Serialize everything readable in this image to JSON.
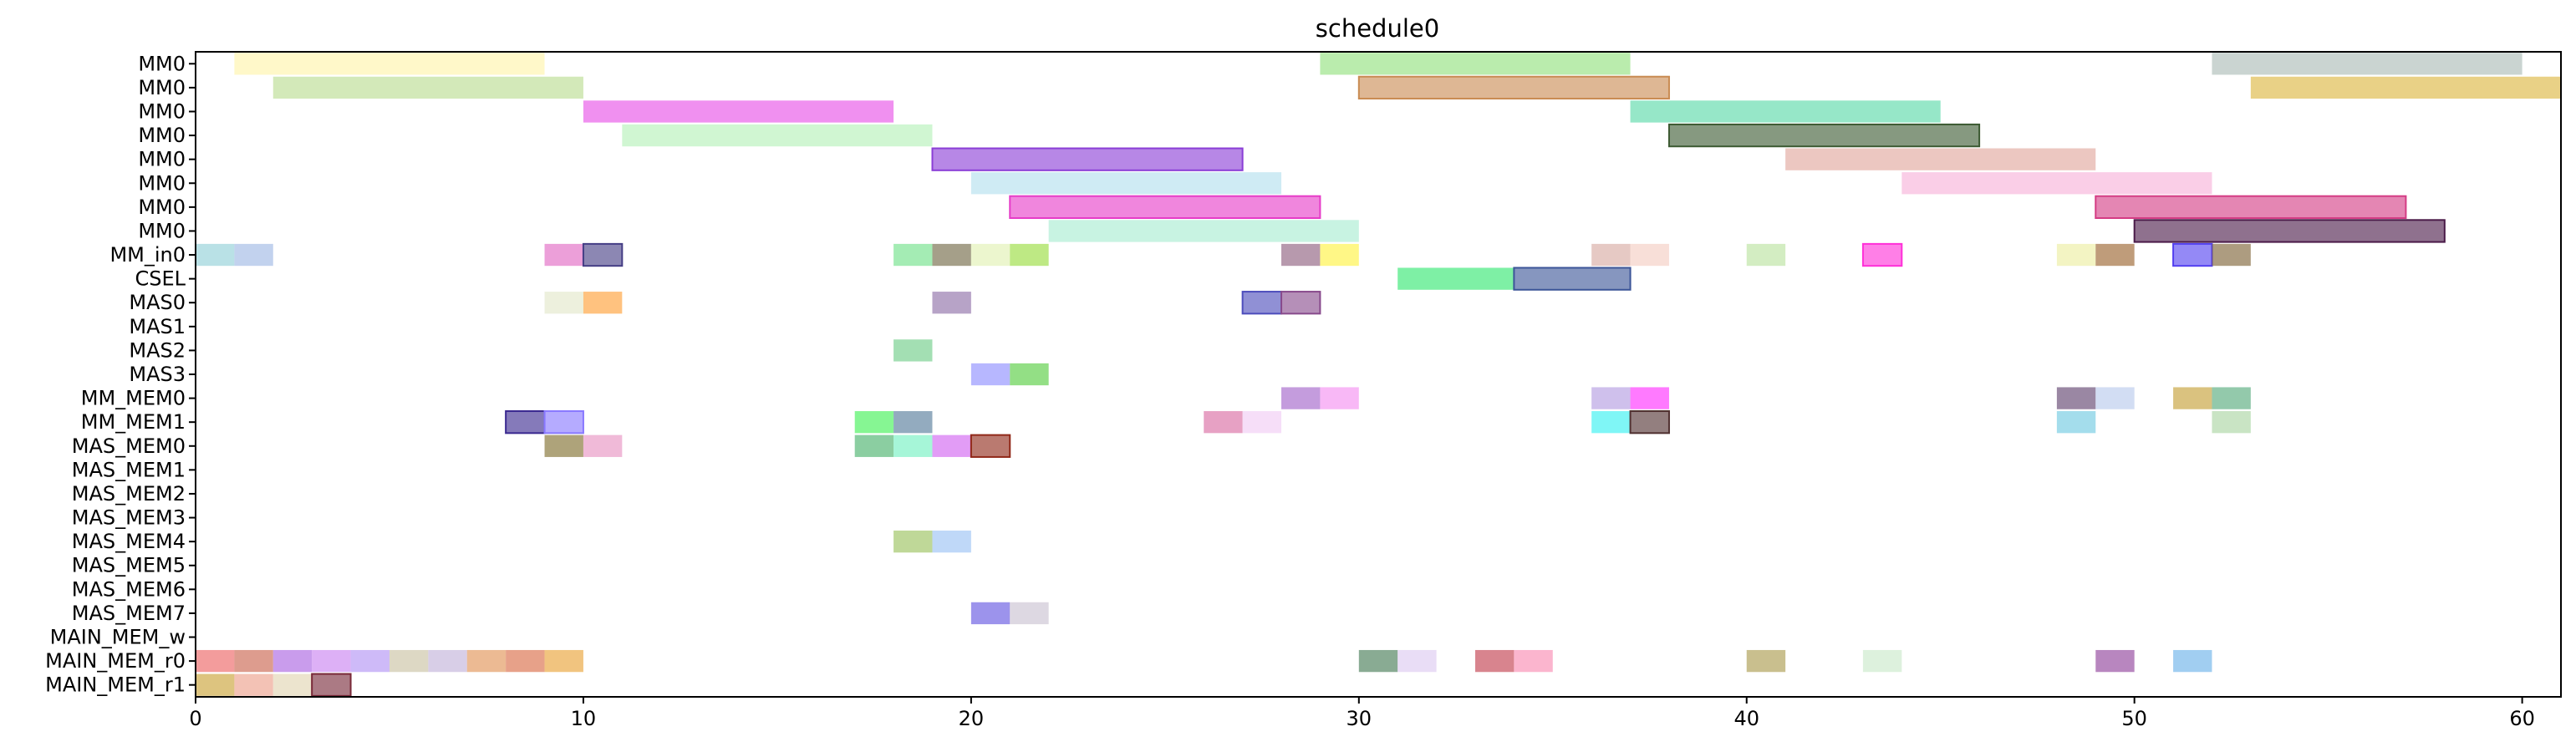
{
  "chart_data": {
    "type": "gantt",
    "title": "schedule0",
    "xlabel": "",
    "ylabel": "",
    "xlim": [
      0,
      61
    ],
    "xticks": [
      0,
      10,
      20,
      30,
      40,
      50,
      60
    ],
    "grid": false,
    "rows": [
      "MM0",
      "MM0",
      "MM0",
      "MM0",
      "MM0",
      "MM0",
      "MM0",
      "MM0",
      "MM_in0",
      "CSEL",
      "MAS0",
      "MAS1",
      "MAS2",
      "MAS3",
      "MM_MEM0",
      "MM_MEM1",
      "MAS_MEM0",
      "MAS_MEM1",
      "MAS_MEM2",
      "MAS_MEM3",
      "MAS_MEM4",
      "MAS_MEM5",
      "MAS_MEM6",
      "MAS_MEM7",
      "MAIN_MEM_w",
      "MAIN_MEM_r0",
      "MAIN_MEM_r1"
    ],
    "bars": [
      {
        "row": 0,
        "start": 1,
        "end": 9,
        "color": "#fff3a8",
        "edge": false
      },
      {
        "row": 0,
        "start": 29,
        "end": 37,
        "color": "#8fe07a",
        "edge": false
      },
      {
        "row": 0,
        "start": 52,
        "end": 60,
        "color": "#a9b9b5",
        "edge": false
      },
      {
        "row": 1,
        "start": 2,
        "end": 10,
        "color": "#b8dc8e",
        "edge": false
      },
      {
        "row": 1,
        "start": 30,
        "end": 38,
        "color": "#c98b52",
        "edge": true
      },
      {
        "row": 1,
        "start": 53,
        "end": 61,
        "color": "#dcb43c",
        "edge": false
      },
      {
        "row": 2,
        "start": 10,
        "end": 18,
        "color": "#e64ce6",
        "edge": false
      },
      {
        "row": 2,
        "start": 37,
        "end": 45,
        "color": "#55d8a6",
        "edge": false
      },
      {
        "row": 3,
        "start": 11,
        "end": 19,
        "color": "#b3f0b6",
        "edge": false
      },
      {
        "row": 3,
        "start": 38,
        "end": 46,
        "color": "#3c5a32",
        "edge": true
      },
      {
        "row": 4,
        "start": 19,
        "end": 27,
        "color": "#8a3ed6",
        "edge": true
      },
      {
        "row": 4,
        "start": 41,
        "end": 49,
        "color": "#e1a59b",
        "edge": false
      },
      {
        "row": 5,
        "start": 20,
        "end": 28,
        "color": "#b1deee",
        "edge": false
      },
      {
        "row": 5,
        "start": 44,
        "end": 52,
        "color": "#f7b0d8",
        "edge": false
      },
      {
        "row": 6,
        "start": 21,
        "end": 29,
        "color": "#e63cc8",
        "edge": true
      },
      {
        "row": 6,
        "start": 49,
        "end": 57,
        "color": "#d43c84",
        "edge": true
      },
      {
        "row": 7,
        "start": 22,
        "end": 30,
        "color": "#a6ecd0",
        "edge": false
      },
      {
        "row": 7,
        "start": 50,
        "end": 58,
        "color": "#4a1a48",
        "edge": true
      },
      {
        "row": 8,
        "start": 0,
        "end": 1,
        "color": "#8ecfd6",
        "edge": false
      },
      {
        "row": 8,
        "start": 1,
        "end": 2,
        "color": "#9cb7e3",
        "edge": false
      },
      {
        "row": 8,
        "start": 9,
        "end": 10,
        "color": "#e064c2",
        "edge": false
      },
      {
        "row": 8,
        "start": 10,
        "end": 11,
        "color": "#453e85",
        "edge": true
      },
      {
        "row": 8,
        "start": 18,
        "end": 19,
        "color": "#6ce086",
        "edge": false
      },
      {
        "row": 8,
        "start": 19,
        "end": 20,
        "color": "#6e6440",
        "edge": false
      },
      {
        "row": 8,
        "start": 20,
        "end": 21,
        "color": "#e0f0b0",
        "edge": false
      },
      {
        "row": 8,
        "start": 21,
        "end": 22,
        "color": "#96dc38",
        "edge": false
      },
      {
        "row": 8,
        "start": 28,
        "end": 29,
        "color": "#8a5a7a",
        "edge": false
      },
      {
        "row": 8,
        "start": 29,
        "end": 30,
        "color": "#fff23c",
        "edge": false
      },
      {
        "row": 8,
        "start": 36,
        "end": 37,
        "color": "#d6a8a0",
        "edge": false
      },
      {
        "row": 8,
        "start": 37,
        "end": 38,
        "color": "#f4ccc0",
        "edge": false
      },
      {
        "row": 8,
        "start": 40,
        "end": 41,
        "color": "#b8e29c",
        "edge": false
      },
      {
        "row": 8,
        "start": 43,
        "end": 44,
        "color": "#ff30d8",
        "edge": true
      },
      {
        "row": 8,
        "start": 48,
        "end": 49,
        "color": "#ecee9e",
        "edge": false
      },
      {
        "row": 8,
        "start": 49,
        "end": 50,
        "color": "#986028",
        "edge": false
      },
      {
        "row": 8,
        "start": 51,
        "end": 52,
        "color": "#5340f0",
        "edge": true
      },
      {
        "row": 8,
        "start": 52,
        "end": 53,
        "color": "#7a6032",
        "edge": false
      },
      {
        "row": 9,
        "start": 31,
        "end": 34,
        "color": "#2ee66e",
        "edge": false
      },
      {
        "row": 9,
        "start": 34,
        "end": 37,
        "color": "#3c5598",
        "edge": true
      },
      {
        "row": 10,
        "start": 9,
        "end": 10,
        "color": "#e2e6c8",
        "edge": false
      },
      {
        "row": 10,
        "start": 10,
        "end": 11,
        "color": "#ff9c30",
        "edge": false
      },
      {
        "row": 10,
        "start": 19,
        "end": 20,
        "color": "#8a6aa4",
        "edge": false
      },
      {
        "row": 10,
        "start": 27,
        "end": 28,
        "color": "#4c4cbc",
        "edge": true
      },
      {
        "row": 10,
        "start": 28,
        "end": 29,
        "color": "#884a8c",
        "edge": true
      },
      {
        "row": 12,
        "start": 18,
        "end": 19,
        "color": "#6acc84",
        "edge": false
      },
      {
        "row": 13,
        "start": 20,
        "end": 21,
        "color": "#8a8aff",
        "edge": false
      },
      {
        "row": 13,
        "start": 21,
        "end": 22,
        "color": "#50cc3a",
        "edge": false
      },
      {
        "row": 14,
        "start": 28,
        "end": 29,
        "color": "#a060c8",
        "edge": false
      },
      {
        "row": 14,
        "start": 29,
        "end": 30,
        "color": "#f48cf0",
        "edge": false
      },
      {
        "row": 14,
        "start": 36,
        "end": 37,
        "color": "#b29ae0",
        "edge": false
      },
      {
        "row": 14,
        "start": 37,
        "end": 38,
        "color": "#ff28ff",
        "edge": false
      },
      {
        "row": 14,
        "start": 48,
        "end": 49,
        "color": "#5c3e6a",
        "edge": false
      },
      {
        "row": 14,
        "start": 49,
        "end": 50,
        "color": "#b6c8ec",
        "edge": false
      },
      {
        "row": 14,
        "start": 51,
        "end": 52,
        "color": "#c49c30",
        "edge": false
      },
      {
        "row": 14,
        "start": 52,
        "end": 53,
        "color": "#50a878",
        "edge": false
      },
      {
        "row": 15,
        "start": 8,
        "end": 9,
        "color": "#3a2890",
        "edge": true
      },
      {
        "row": 15,
        "start": 9,
        "end": 10,
        "color": "#8878ff",
        "edge": true
      },
      {
        "row": 15,
        "start": 17,
        "end": 18,
        "color": "#3cf050",
        "edge": false
      },
      {
        "row": 15,
        "start": 18,
        "end": 19,
        "color": "#507898",
        "edge": false
      },
      {
        "row": 15,
        "start": 26,
        "end": 27,
        "color": "#d868a0",
        "edge": false
      },
      {
        "row": 15,
        "start": 27,
        "end": 28,
        "color": "#f0caf4",
        "edge": false
      },
      {
        "row": 15,
        "start": 36,
        "end": 37,
        "color": "#30f0f0",
        "edge": false
      },
      {
        "row": 15,
        "start": 37,
        "end": 38,
        "color": "#503030",
        "edge": true
      },
      {
        "row": 15,
        "start": 48,
        "end": 49,
        "color": "#6cc8e0",
        "edge": false
      },
      {
        "row": 15,
        "start": 52,
        "end": 53,
        "color": "#a8d4a0",
        "edge": false
      },
      {
        "row": 16,
        "start": 9,
        "end": 10,
        "color": "#7c6a28",
        "edge": false
      },
      {
        "row": 16,
        "start": 10,
        "end": 11,
        "color": "#e690c0",
        "edge": false
      },
      {
        "row": 16,
        "start": 17,
        "end": 18,
        "color": "#44b068",
        "edge": false
      },
      {
        "row": 16,
        "start": 18,
        "end": 19,
        "color": "#70f0c0",
        "edge": false
      },
      {
        "row": 16,
        "start": 19,
        "end": 20,
        "color": "#d060f0",
        "edge": false
      },
      {
        "row": 16,
        "start": 20,
        "end": 21,
        "color": "#902818",
        "edge": true
      },
      {
        "row": 20,
        "start": 18,
        "end": 19,
        "color": "#98c058",
        "edge": false
      },
      {
        "row": 20,
        "start": 19,
        "end": 20,
        "color": "#98c0f4",
        "edge": false
      },
      {
        "row": 23,
        "start": 20,
        "end": 21,
        "color": "#6050e0",
        "edge": false
      },
      {
        "row": 23,
        "start": 21,
        "end": 22,
        "color": "#c8c0d0",
        "edge": false
      },
      {
        "row": 25,
        "start": 0,
        "end": 1,
        "color": "#ec6060",
        "edge": false
      },
      {
        "row": 25,
        "start": 1,
        "end": 2,
        "color": "#c86048",
        "edge": false
      },
      {
        "row": 25,
        "start": 2,
        "end": 3,
        "color": "#a860e0",
        "edge": false
      },
      {
        "row": 25,
        "start": 3,
        "end": 4,
        "color": "#c880f0",
        "edge": false
      },
      {
        "row": 25,
        "start": 4,
        "end": 5,
        "color": "#b090f4",
        "edge": false
      },
      {
        "row": 25,
        "start": 5,
        "end": 6,
        "color": "#c8c0a0",
        "edge": false
      },
      {
        "row": 25,
        "start": 6,
        "end": 7,
        "color": "#c0b0d8",
        "edge": false
      },
      {
        "row": 25,
        "start": 7,
        "end": 8,
        "color": "#e09050",
        "edge": false
      },
      {
        "row": 25,
        "start": 8,
        "end": 9,
        "color": "#d86840",
        "edge": false
      },
      {
        "row": 25,
        "start": 9,
        "end": 10,
        "color": "#e8a030",
        "edge": false
      },
      {
        "row": 25,
        "start": 30,
        "end": 31,
        "color": "#407850",
        "edge": false
      },
      {
        "row": 25,
        "start": 31,
        "end": 32,
        "color": "#dcc8f0",
        "edge": false
      },
      {
        "row": 25,
        "start": 33,
        "end": 34,
        "color": "#c03848",
        "edge": false
      },
      {
        "row": 25,
        "start": 34,
        "end": 35,
        "color": "#f888b0",
        "edge": false
      },
      {
        "row": 25,
        "start": 40,
        "end": 41,
        "color": "#a89848",
        "edge": false
      },
      {
        "row": 25,
        "start": 43,
        "end": 44,
        "color": "#c8e8c8",
        "edge": false
      },
      {
        "row": 25,
        "start": 49,
        "end": 50,
        "color": "#8c3c98",
        "edge": false
      },
      {
        "row": 25,
        "start": 51,
        "end": 52,
        "color": "#68b0e8",
        "edge": false
      },
      {
        "row": 26,
        "start": 0,
        "end": 1,
        "color": "#c8a030",
        "edge": false
      },
      {
        "row": 26,
        "start": 1,
        "end": 2,
        "color": "#ec9c88",
        "edge": false
      },
      {
        "row": 26,
        "start": 2,
        "end": 3,
        "color": "#e0d4b0",
        "edge": false
      },
      {
        "row": 26,
        "start": 3,
        "end": 4,
        "color": "#782838",
        "edge": true
      }
    ]
  }
}
